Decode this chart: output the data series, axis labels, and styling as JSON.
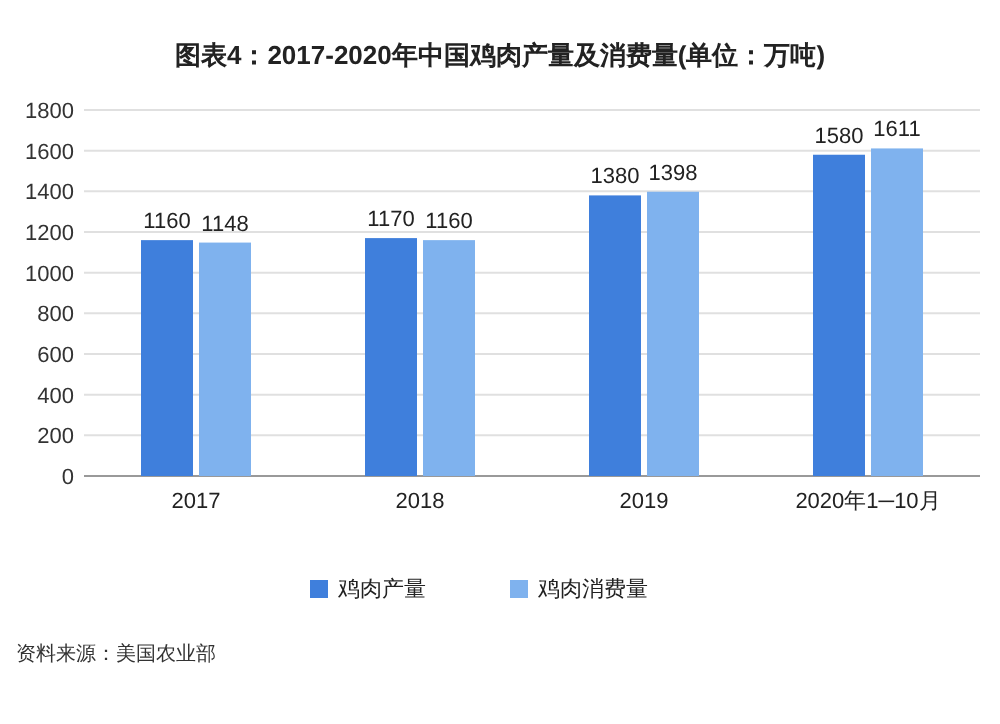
{
  "chart_data": {
    "type": "bar",
    "title": "图表4：2017-2020年中国鸡肉产量及消费量(单位：万吨)",
    "categories": [
      "2017",
      "2018",
      "2019",
      "2020年1─10月"
    ],
    "series": [
      {
        "name": "鸡肉产量",
        "color": "#3f7fdc",
        "values": [
          1160,
          1170,
          1380,
          1580
        ]
      },
      {
        "name": "鸡肉消费量",
        "color": "#7fb2ee",
        "values": [
          1148,
          1160,
          1398,
          1611
        ]
      }
    ],
    "ylim": [
      0,
      1800
    ],
    "yticks": [
      0,
      200,
      400,
      600,
      800,
      1000,
      1200,
      1400,
      1600,
      1800
    ],
    "grid": "y",
    "legend": "bottom",
    "data_labels": true,
    "annotations": [
      "资料来源：美国农业部"
    ]
  }
}
